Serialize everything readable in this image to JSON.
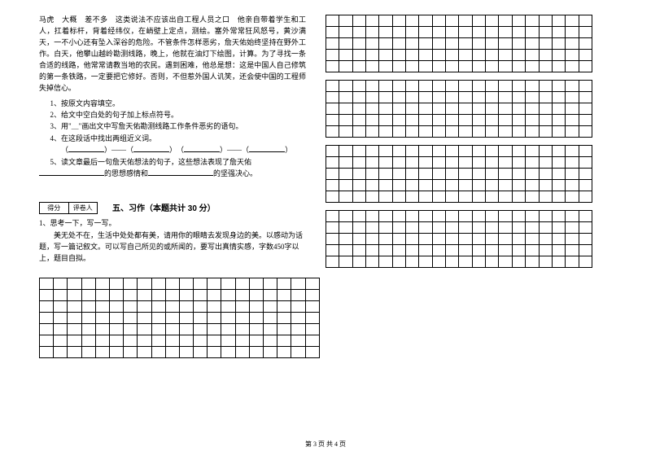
{
  "passage": "马虎　大概　差不多　这类说法不应该出自工程人员之口　他亲自带着学生和工人，扛着标杆，背着经纬仪，在峭壁上定点，测绘。塞外常常狂风怒号，黄沙满天，一不小心还有坠入深谷的危险。不管条件怎样恶劣，詹天佑始终坚持在野外工作。白天，他攀山越岭勘测线路，晚上，他就在油灯下绘图，计算。为了寻找一条合适的线路，他常常请教当地的农民。遇到困难，他总是想：这是中国人自己修筑的第一条铁路，一定要把它修好。否则，不但惹外国人讥笑，还会使中国的工程师失掉信心。",
  "q1": "1、按原文内容填空。",
  "q2": "2、给文中空白处的句子加上标点符号。",
  "q3": "3、用\"＿\"画出文中写詹天佑勘测线路工作条件恶劣的语句。",
  "q4": "4、在这段话中找出两组近义词。",
  "q4sub_open": "（",
  "q4sub_dash": "）——（",
  "q4sub_mid": "）　（",
  "q4sub_close": "）",
  "q5a": "5、读文章最后一句詹天佑想法的句子，这些想法表现了詹天佑",
  "q5b": "的思想感情和",
  "q5c": "的坚强决心。",
  "score_left": "得分",
  "score_right": "评卷人",
  "section5": "五、习作（本题共计 30 分）",
  "essay1": "1、思考一下，写一写。",
  "essay2": "美无处不在，生活中处处都有美，请用你的眼睛去发现身边的美。以感动为话题，写一篇记叙文。可以写自己所见的或所闻的，要写出真情实感，字数450字以上，题目自拟。",
  "footer": "第 3 页 共 4 页",
  "style": {
    "cols_per_grid": 20,
    "left_grid_rows": 7,
    "right_grid_rows": 5,
    "right_grid_count": 4,
    "border_color": "#000000",
    "background": "#ffffff"
  }
}
